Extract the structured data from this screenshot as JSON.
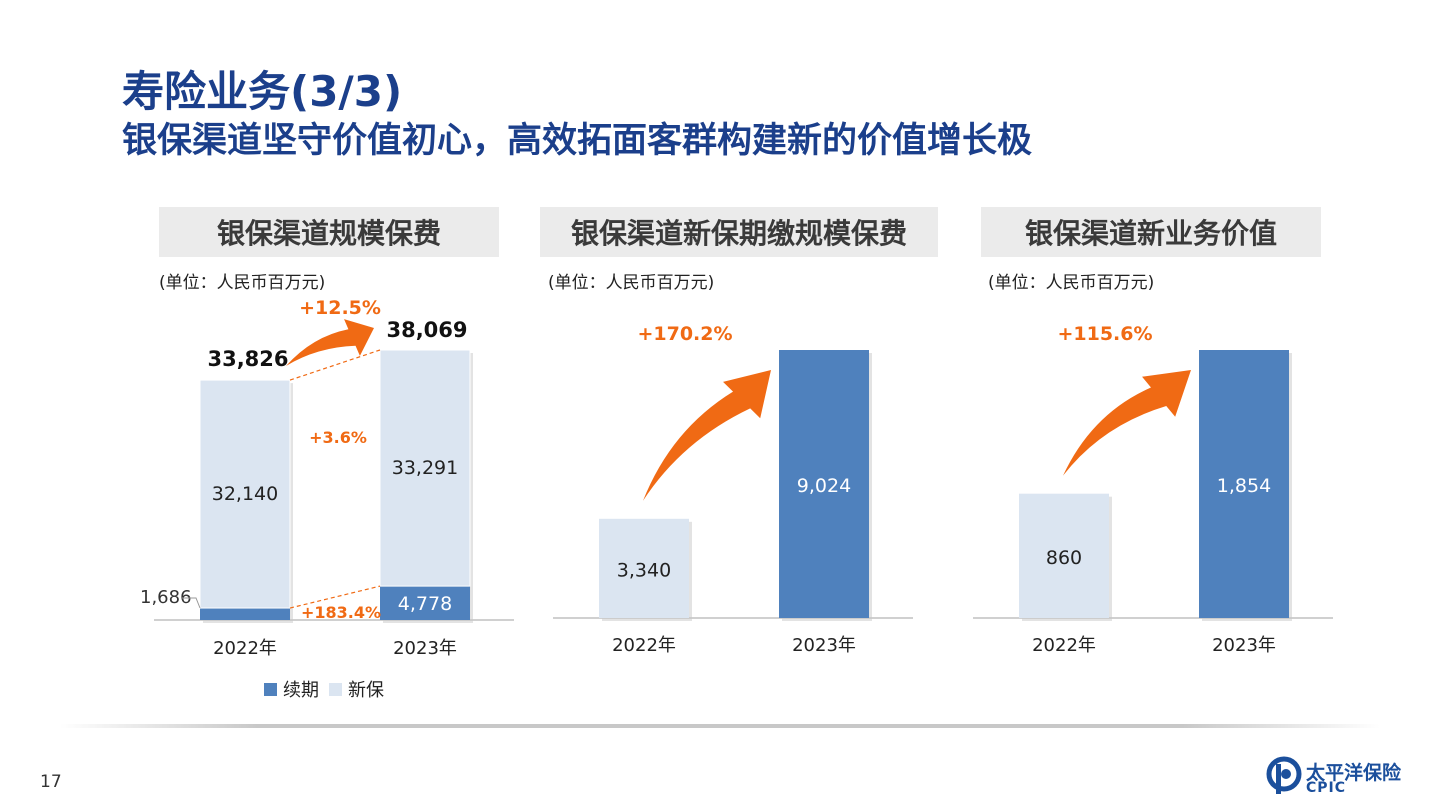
{
  "page": {
    "title": "寿险业务(3/3)",
    "subtitle": "银保渠道坚守价值初心，高效拓面客群构建新的价值增长极",
    "page_number": "17",
    "logo_cn": "太平洋保险",
    "logo_en": "CPIC"
  },
  "colors": {
    "title": "#1b3f8b",
    "renewal": "#4f81bd",
    "new": "#dbe5f1",
    "accent": "#f06a14"
  },
  "chart_data": [
    {
      "type": "bar",
      "stacked": true,
      "title": "银保渠道规模保费",
      "unit": "(单位：人民币百万元)",
      "categories": [
        "2022年",
        "2023年"
      ],
      "series": [
        {
          "name": "续期",
          "values": [
            1686,
            4778
          ],
          "value_labels": [
            "1,686",
            "4,778"
          ]
        },
        {
          "name": "新保",
          "values": [
            32140,
            33291
          ],
          "value_labels": [
            "32,140",
            "33,291"
          ]
        }
      ],
      "totals": [
        33826,
        38069
      ],
      "total_labels": [
        "33,826",
        "38,069"
      ],
      "growth_total": "+12.5%",
      "growth_renewal": "+183.4%",
      "growth_new": "+3.6%",
      "legend": [
        "续期",
        "新保"
      ]
    },
    {
      "type": "bar",
      "title": "银保渠道新保期缴规模保费",
      "unit": "(单位：人民币百万元)",
      "categories": [
        "2022年",
        "2023年"
      ],
      "values": [
        3340,
        9024
      ],
      "value_labels": [
        "3,340",
        "9,024"
      ],
      "growth": "+170.2%"
    },
    {
      "type": "bar",
      "title": "银保渠道新业务价值",
      "unit": "(单位：人民币百万元)",
      "categories": [
        "2022年",
        "2023年"
      ],
      "values": [
        860,
        1854
      ],
      "value_labels": [
        "860",
        "1,854"
      ],
      "growth": "+115.6%"
    }
  ]
}
